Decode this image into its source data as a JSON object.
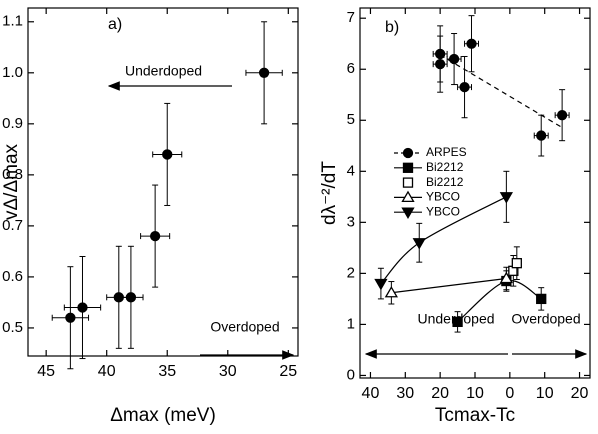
{
  "chart_data": [
    {
      "type": "scatter",
      "panel_label": "a)",
      "x_label": "Δmax (meV)",
      "y_label": "vΔ/Δmax",
      "xlim": [
        46.5,
        24.2
      ],
      "xticks": [
        45,
        40,
        35,
        30,
        25
      ],
      "ylim": [
        0.445,
        1.127
      ],
      "yticks": [
        0.5,
        0.6,
        0.7,
        0.8,
        0.9,
        {
          "value": 1,
          "label": "1.0"
        },
        1.1
      ],
      "annotations": [
        "Underdoped",
        "Overdoped"
      ],
      "series": [
        {
          "color": "#000",
          "marker": "circle",
          "filled": true,
          "x": [
            43,
            42,
            39,
            38,
            36,
            35,
            27
          ],
          "values": [
            0.52,
            0.54,
            0.56,
            0.56,
            0.68,
            0.84,
            1.0
          ],
          "xerr": [
            1.5,
            1.5,
            1,
            1,
            1.2,
            1.2,
            1.5
          ],
          "yerr": [
            0.1,
            0.1,
            0.1,
            0.1,
            0.1,
            0.1,
            0.1
          ]
        }
      ]
    },
    {
      "type": "scatter",
      "panel_label": "b)",
      "x_label": "Tcmax-Tc",
      "y_label": "dλ⁻²/dT",
      "xlim": [
        43,
        -23
      ],
      "xticks": [
        40,
        30,
        20,
        10,
        0,
        {
          "value": -10,
          "label": "10"
        },
        {
          "value": -20,
          "label": "20"
        }
      ],
      "ylim": [
        -0.05,
        7.2
      ],
      "yticks": [
        0,
        1,
        2,
        3,
        4,
        5,
        6,
        7
      ],
      "annotations": [
        "Underdoped",
        "Overdoped"
      ],
      "series": [
        {
          "name": "ARPES",
          "color": "#000",
          "marker": "circle",
          "filled": true,
          "fit": "dashed",
          "x": [
            20,
            20,
            16,
            13,
            11,
            -9,
            -15
          ],
          "values": [
            6.3,
            6.1,
            6.2,
            5.65,
            6.5,
            4.7,
            5.1
          ],
          "xerr": [
            2,
            2,
            2,
            2,
            2,
            2,
            2
          ],
          "yerr": [
            0.55,
            0.55,
            0.5,
            0.6,
            0.55,
            0.4,
            0.5
          ]
        },
        {
          "name": "Bi2212",
          "color": "#000",
          "marker": "square",
          "filled": true,
          "fit": "solid",
          "x": [
            15,
            1,
            -9
          ],
          "values": [
            1.05,
            1.85,
            1.5
          ],
          "xerr": [
            0,
            0,
            0
          ],
          "yerr": [
            0.2,
            0.2,
            0.22
          ]
        },
        {
          "name": "Bi2212",
          "color": "#000",
          "marker": "square",
          "filled": false,
          "x": [
            -1,
            -2
          ],
          "values": [
            2.05,
            2.2
          ],
          "xerr": [
            0,
            0
          ],
          "yerr": [
            0.3,
            0.32
          ]
        },
        {
          "name": "YBCO",
          "color": "#000",
          "marker": "triangle-up",
          "filled": false,
          "fit": "solid",
          "x": [
            34,
            1
          ],
          "values": [
            1.62,
            1.9
          ],
          "xerr": [
            0,
            0
          ],
          "yerr": [
            0.22,
            0.22
          ]
        },
        {
          "name": "YBCO",
          "color": "#000",
          "marker": "triangle-down",
          "filled": true,
          "fit": "solid",
          "x": [
            37,
            26,
            1
          ],
          "values": [
            1.8,
            2.6,
            3.5
          ],
          "xerr": [
            0,
            0,
            0
          ],
          "yerr": [
            0.3,
            0.38,
            0.5
          ]
        }
      ]
    }
  ]
}
